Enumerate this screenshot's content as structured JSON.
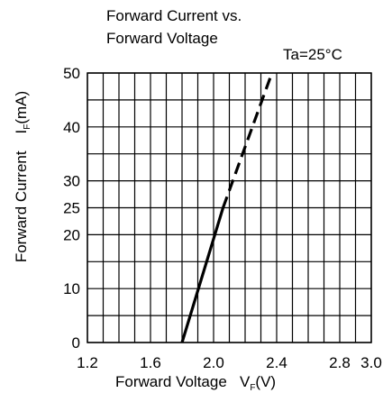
{
  "chart_data": {
    "type": "line",
    "title": "Forward Current vs.\nForward Voltage",
    "title_lines": [
      "Forward Current vs.",
      "Forward Voltage"
    ],
    "condition": "Ta=25°C",
    "xlabel": {
      "main": "Forward Voltage",
      "symbol": "V",
      "subscript": "F",
      "unit": "(V)"
    },
    "ylabel": {
      "main": "Forward Current",
      "symbol": "I",
      "subscript": "F",
      "unit": "(mA)"
    },
    "xlim": [
      1.2,
      3.0
    ],
    "ylim": [
      0,
      50
    ],
    "x_ticks": [
      {
        "value": 1.2,
        "label": "1.2"
      },
      {
        "value": 1.6,
        "label": "1.6"
      },
      {
        "value": 2.0,
        "label": "2.0"
      },
      {
        "value": 2.4,
        "label": "2.4"
      },
      {
        "value": 2.8,
        "label": "2.8"
      },
      {
        "value": 3.0,
        "label": "3.0"
      }
    ],
    "y_ticks": [
      {
        "value": 0,
        "label": "0"
      },
      {
        "value": 10,
        "label": "10"
      },
      {
        "value": 20,
        "label": "20"
      },
      {
        "value": 25,
        "label": "25"
      },
      {
        "value": 30,
        "label": "30"
      },
      {
        "value": 40,
        "label": "40"
      },
      {
        "value": 50,
        "label": "50"
      }
    ],
    "grid": true,
    "x_grid_step": 0.1,
    "y_grid": [
      0,
      5,
      10,
      15,
      20,
      25,
      30,
      35,
      40,
      45,
      50
    ],
    "series": [
      {
        "style": "solid",
        "color": "#000000",
        "x": [
          1.8,
          2.06
        ],
        "y": [
          0,
          25
        ]
      },
      {
        "style": "dashed",
        "color": "#000000",
        "x": [
          2.06,
          2.37
        ],
        "y": [
          25,
          50
        ]
      }
    ]
  }
}
